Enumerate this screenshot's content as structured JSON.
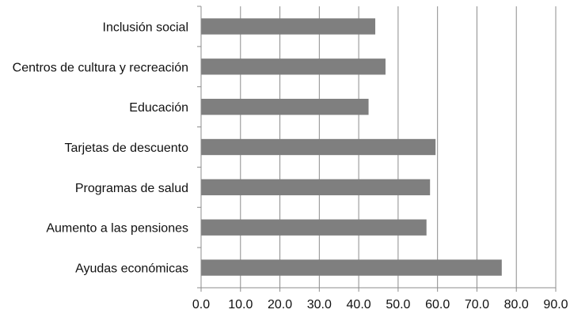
{
  "chart_data": {
    "type": "bar",
    "orientation": "horizontal",
    "categories": [
      "Inclusión social",
      "Centros de cultura y recreación",
      "Educación",
      "Tarjetas de descuento",
      "Programas de salud",
      "Aumento a las pensiones",
      "Ayudas económicas"
    ],
    "values": [
      44.2,
      46.8,
      42.5,
      59.5,
      58.1,
      57.2,
      76.3
    ],
    "xlim": [
      0,
      90
    ],
    "xticks": [
      0,
      10,
      20,
      30,
      40,
      50,
      60,
      70,
      80,
      90
    ],
    "xtick_labels": [
      "0.0",
      "10.0",
      "20.0",
      "30.0",
      "40.0",
      "50.0",
      "60.0",
      "70.0",
      "80.0",
      "90.0"
    ],
    "title": "",
    "xlabel": "",
    "ylabel": "",
    "grid": "vertical",
    "legend": "none",
    "colors": {
      "bar": "#7f7f7f",
      "grid": "#8c8c8c",
      "axis": "#8c8c8c",
      "text": "#111111"
    }
  }
}
